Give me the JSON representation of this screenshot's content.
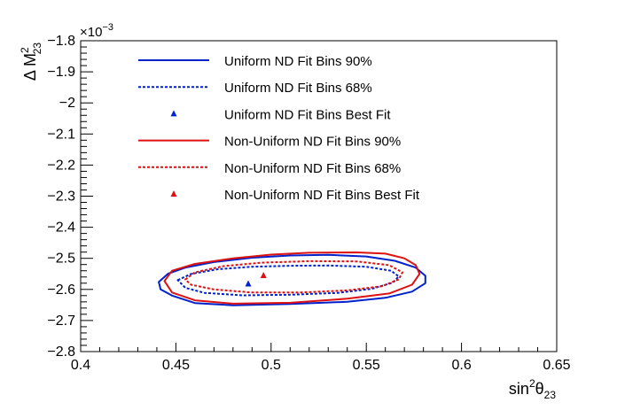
{
  "chart_data": {
    "type": "line",
    "title": "",
    "xlabel_main": "sin",
    "xlabel_sup": "2",
    "xlabel_theta": "θ",
    "xlabel_sub": "23",
    "ylabel_main": "Δ M",
    "ylabel_sup": "2",
    "ylabel_sub": "23",
    "y_multiplier_base": "×10",
    "y_multiplier_exp": "−3",
    "xlim": [
      0.4,
      0.65
    ],
    "ylim": [
      -2.8,
      -1.8
    ],
    "x_ticks": [
      0.4,
      0.45,
      0.5,
      0.55,
      0.6,
      0.65
    ],
    "x_tick_labels": [
      "0.4",
      "0.45",
      "0.5",
      "0.55",
      "0.6",
      "0.65"
    ],
    "y_ticks": [
      -2.8,
      -2.7,
      -2.6,
      -2.5,
      -2.4,
      -2.3,
      -2.2,
      -2.1,
      -2.0,
      -1.9,
      -1.8
    ],
    "y_tick_labels": [
      "−2.8",
      "−2.7",
      "−2.6",
      "−2.5",
      "−2.4",
      "−2.3",
      "−2.2",
      "−2.1",
      "−2",
      "−1.9",
      "−1.8"
    ],
    "grid": false,
    "legend_position": "top-center",
    "colors": {
      "uniform": "#0022cc",
      "nonuniform": "#dd1111"
    },
    "series": [
      {
        "name": "Uniform ND Fit Bins 90%",
        "color": "#0022cc",
        "dash": "solid",
        "kind": "contour",
        "points": [
          [
            0.441,
            -2.576
          ],
          [
            0.446,
            -2.549
          ],
          [
            0.455,
            -2.53
          ],
          [
            0.47,
            -2.512
          ],
          [
            0.49,
            -2.498
          ],
          [
            0.51,
            -2.491
          ],
          [
            0.53,
            -2.489
          ],
          [
            0.55,
            -2.494
          ],
          [
            0.565,
            -2.508
          ],
          [
            0.576,
            -2.53
          ],
          [
            0.581,
            -2.556
          ],
          [
            0.581,
            -2.58
          ],
          [
            0.574,
            -2.607
          ],
          [
            0.56,
            -2.627
          ],
          [
            0.54,
            -2.64
          ],
          [
            0.51,
            -2.647
          ],
          [
            0.48,
            -2.651
          ],
          [
            0.46,
            -2.644
          ],
          [
            0.448,
            -2.62
          ],
          [
            0.442,
            -2.6
          ]
        ]
      },
      {
        "name": "Uniform ND Fit Bins 68%",
        "color": "#0022cc",
        "dash": "dotted",
        "kind": "contour",
        "points": [
          [
            0.451,
            -2.57
          ],
          [
            0.458,
            -2.55
          ],
          [
            0.472,
            -2.535
          ],
          [
            0.49,
            -2.527
          ],
          [
            0.51,
            -2.524
          ],
          [
            0.53,
            -2.523
          ],
          [
            0.55,
            -2.527
          ],
          [
            0.563,
            -2.54
          ],
          [
            0.567,
            -2.558
          ],
          [
            0.564,
            -2.578
          ],
          [
            0.553,
            -2.598
          ],
          [
            0.535,
            -2.611
          ],
          [
            0.51,
            -2.617
          ],
          [
            0.485,
            -2.619
          ],
          [
            0.465,
            -2.611
          ],
          [
            0.455,
            -2.595
          ]
        ]
      },
      {
        "name": "Uniform ND Fit Bins Best Fit",
        "color": "#0022cc",
        "kind": "marker",
        "points": [
          [
            0.488,
            -2.582
          ]
        ]
      },
      {
        "name": "Non-Uniform ND Fit Bins 90%",
        "color": "#dd1111",
        "dash": "solid",
        "kind": "contour",
        "points": [
          [
            0.444,
            -2.573
          ],
          [
            0.448,
            -2.54
          ],
          [
            0.46,
            -2.518
          ],
          [
            0.48,
            -2.5
          ],
          [
            0.5,
            -2.488
          ],
          [
            0.52,
            -2.482
          ],
          [
            0.545,
            -2.481
          ],
          [
            0.56,
            -2.485
          ],
          [
            0.57,
            -2.5
          ],
          [
            0.576,
            -2.522
          ],
          [
            0.578,
            -2.55
          ],
          [
            0.574,
            -2.585
          ],
          [
            0.562,
            -2.613
          ],
          [
            0.54,
            -2.63
          ],
          [
            0.51,
            -2.643
          ],
          [
            0.48,
            -2.646
          ],
          [
            0.46,
            -2.635
          ],
          [
            0.448,
            -2.61
          ]
        ]
      },
      {
        "name": "Non-Uniform ND Fit Bins 68%",
        "color": "#dd1111",
        "dash": "dotted",
        "kind": "contour",
        "points": [
          [
            0.455,
            -2.568
          ],
          [
            0.46,
            -2.545
          ],
          [
            0.475,
            -2.525
          ],
          [
            0.495,
            -2.514
          ],
          [
            0.52,
            -2.509
          ],
          [
            0.545,
            -2.51
          ],
          [
            0.562,
            -2.522
          ],
          [
            0.569,
            -2.545
          ],
          [
            0.567,
            -2.568
          ],
          [
            0.558,
            -2.59
          ],
          [
            0.54,
            -2.603
          ],
          [
            0.515,
            -2.61
          ],
          [
            0.49,
            -2.61
          ],
          [
            0.47,
            -2.6
          ],
          [
            0.458,
            -2.585
          ]
        ]
      },
      {
        "name": "Non-Uniform ND Fit Bins Best Fit",
        "color": "#dd1111",
        "kind": "marker",
        "points": [
          [
            0.496,
            -2.555
          ]
        ]
      }
    ]
  }
}
